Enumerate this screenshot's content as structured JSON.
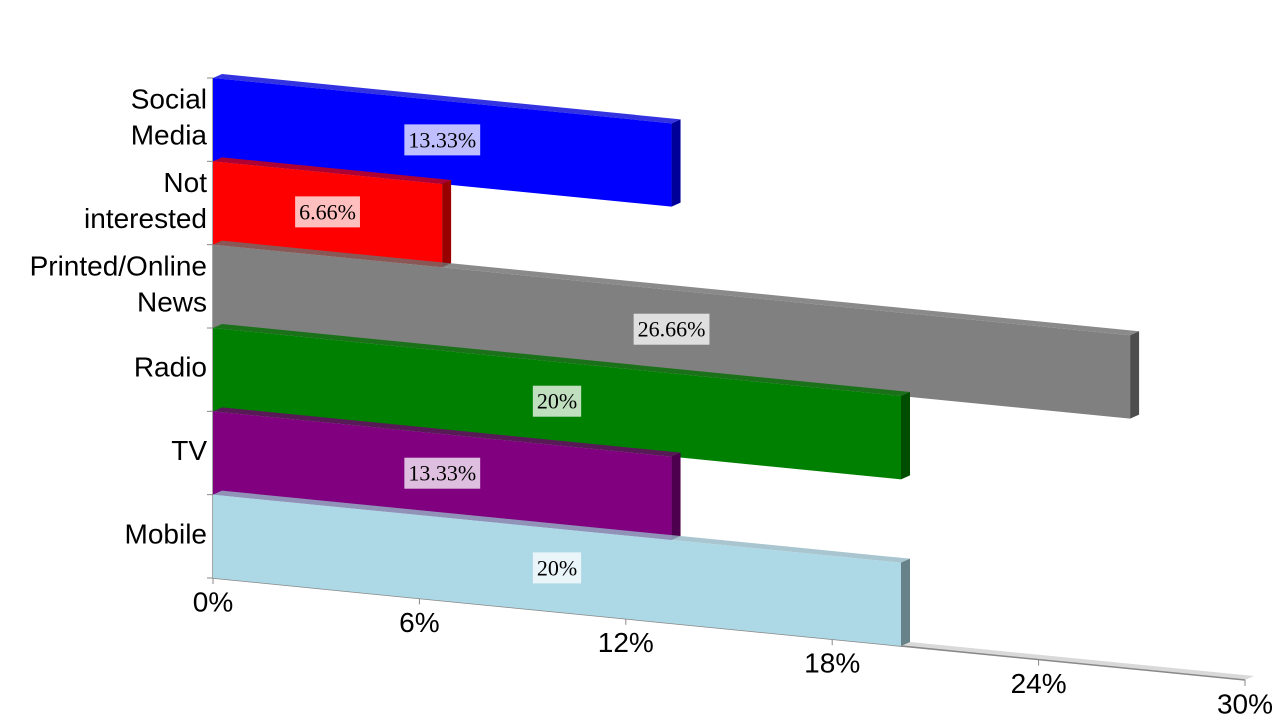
{
  "chart_data": {
    "type": "bar",
    "orientation": "horizontal",
    "categories": [
      "Social Media",
      "Not interested",
      "Printed/Online News",
      "Radio",
      "TV",
      "Mobile"
    ],
    "values": [
      13.33,
      6.66,
      26.66,
      20,
      13.33,
      20
    ],
    "value_labels": [
      "13.33%",
      "6.66%",
      "26.66%",
      "20%",
      "13.33%",
      "20%"
    ],
    "colors": [
      "#0000ff",
      "#ff0000",
      "#808080",
      "#008000",
      "#800080",
      "#add8e6"
    ],
    "xlim": [
      0,
      30
    ],
    "xticks": [
      {
        "value": 0,
        "label": "0%"
      },
      {
        "value": 6,
        "label": "6%"
      },
      {
        "value": 12,
        "label": "12%"
      },
      {
        "value": 18,
        "label": "18%"
      },
      {
        "value": 24,
        "label": "24%"
      },
      {
        "value": 30,
        "label": "30%"
      }
    ]
  }
}
